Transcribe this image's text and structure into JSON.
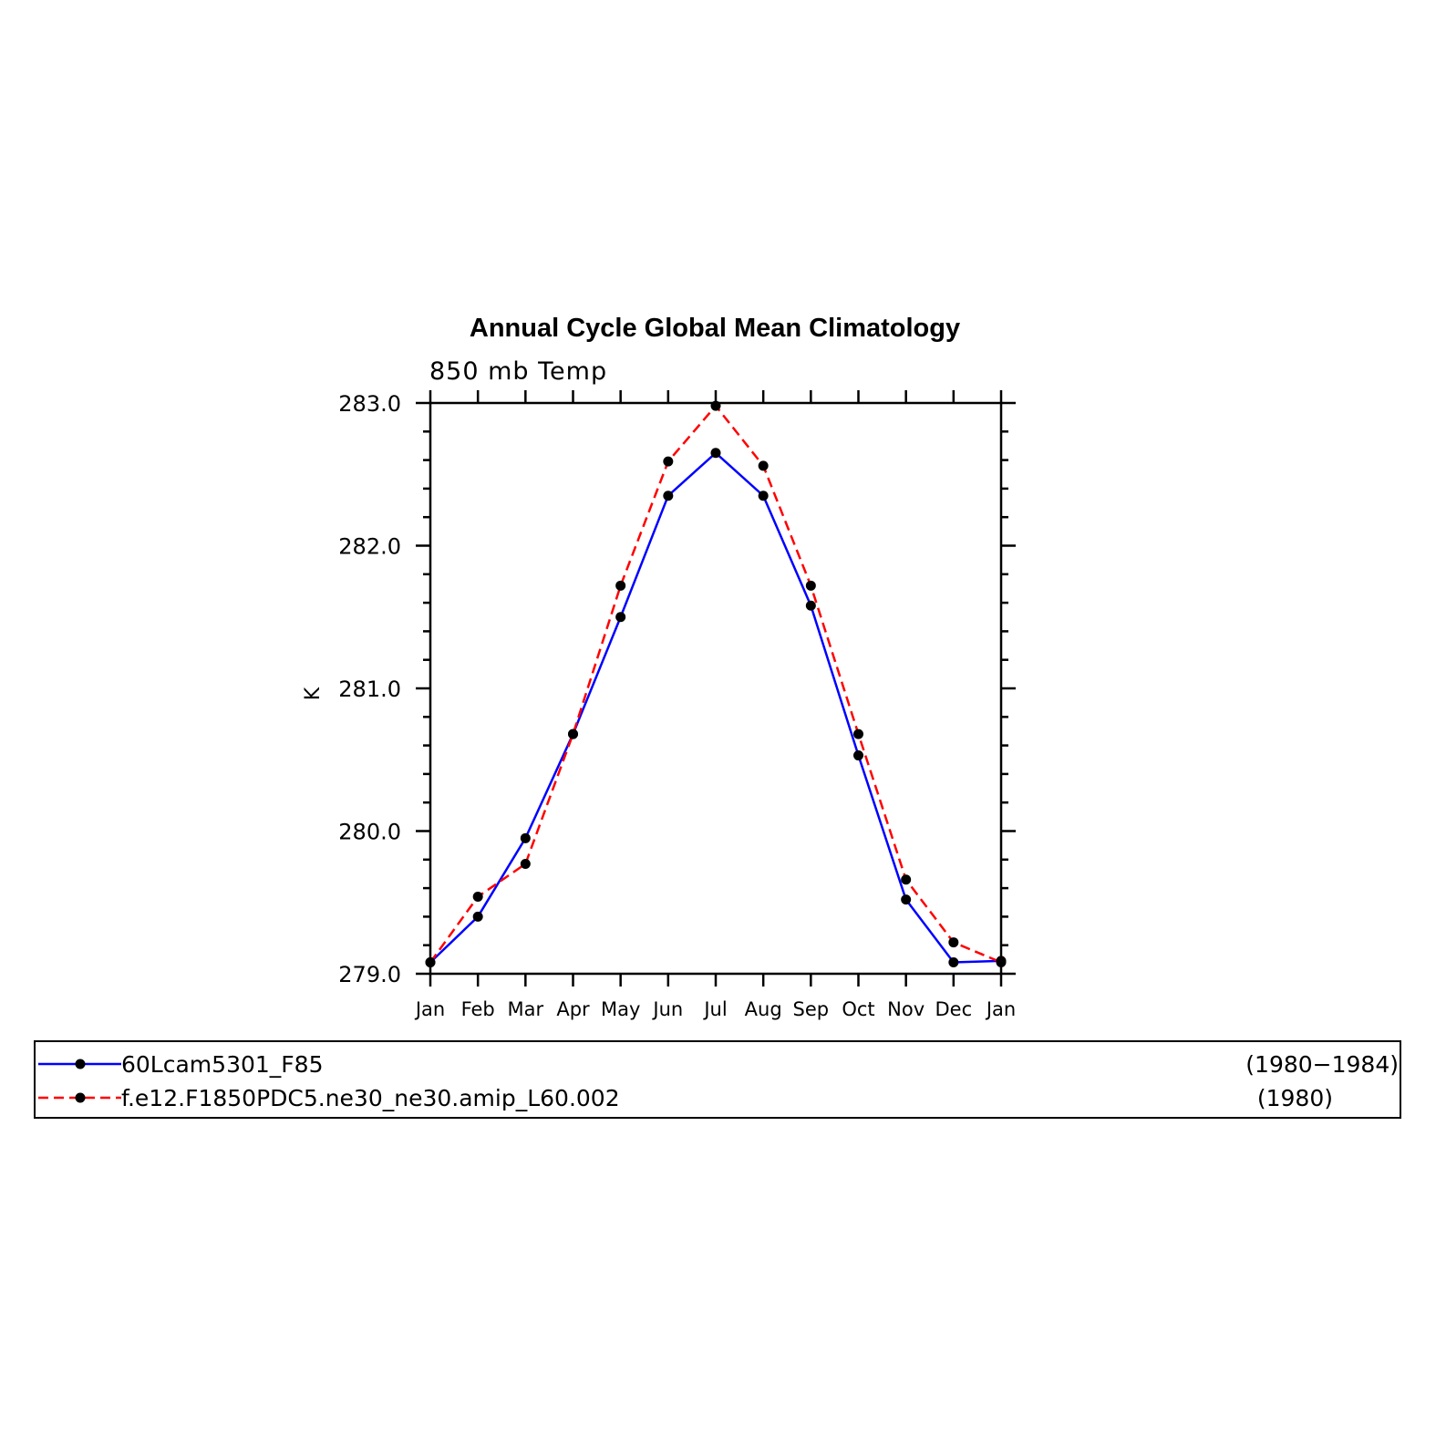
{
  "chart_data": {
    "type": "line",
    "title": "Annual Cycle Global Mean Climatology",
    "subtitle": "850 mb Temp",
    "xlabel": "",
    "ylabel": "K",
    "categories": [
      "Jan",
      "Feb",
      "Mar",
      "Apr",
      "May",
      "Jun",
      "Jul",
      "Aug",
      "Sep",
      "Oct",
      "Nov",
      "Dec",
      "Jan"
    ],
    "ylim": [
      279.0,
      283.0
    ],
    "yticks": [
      "279.0",
      "280.0",
      "281.0",
      "282.0",
      "283.0"
    ],
    "grid": false,
    "legend_position": "bottom",
    "series": [
      {
        "name": "60Lcam5301_F85",
        "years": "(1980−1984)",
        "color": "#0000ff",
        "line_style": "solid",
        "marker": "filled-circle",
        "values": [
          279.08,
          279.4,
          279.95,
          280.68,
          281.5,
          282.35,
          282.65,
          282.35,
          281.58,
          280.53,
          279.52,
          279.08,
          279.09
        ]
      },
      {
        "name": "f.e12.F1850PDC5.ne30_ne30.amip_L60.002",
        "years": "(1980)",
        "color": "#ff0000",
        "line_style": "dashed",
        "marker": "filled-circle",
        "values": [
          279.08,
          279.54,
          279.77,
          280.68,
          281.72,
          282.59,
          282.98,
          282.56,
          281.72,
          280.68,
          279.66,
          279.22,
          279.08
        ]
      }
    ]
  }
}
